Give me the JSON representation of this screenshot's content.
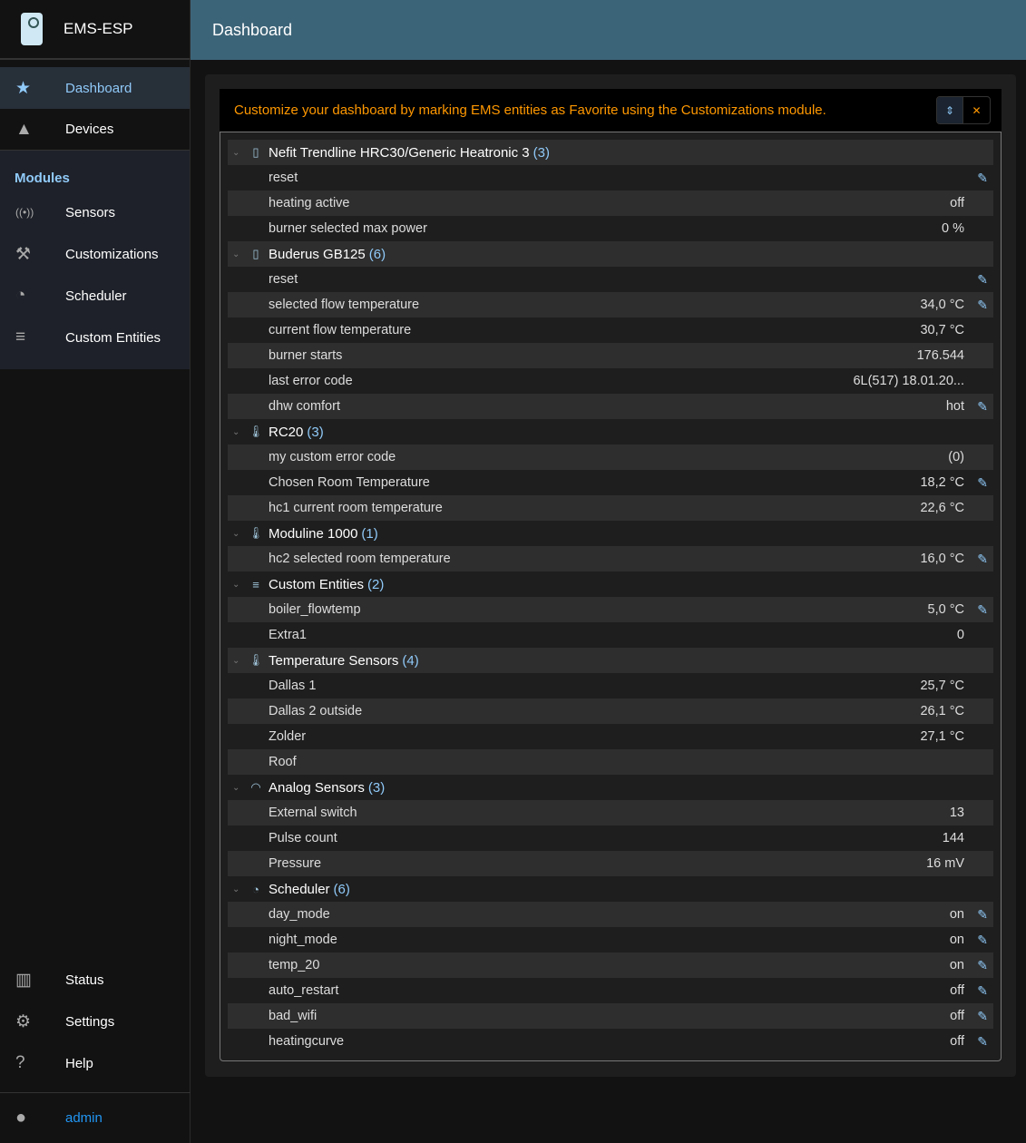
{
  "app": {
    "title": "EMS-ESP"
  },
  "header": {
    "title": "Dashboard"
  },
  "sidebar": {
    "top": [
      {
        "label": "Dashboard",
        "icon": "star-icon",
        "active": true
      },
      {
        "label": "Devices",
        "icon": "category-icon"
      }
    ],
    "modules_title": "Modules",
    "modules": [
      {
        "label": "Sensors",
        "icon": "sensors-icon"
      },
      {
        "label": "Customizations",
        "icon": "tools-icon"
      },
      {
        "label": "Scheduler",
        "icon": "more-time-icon"
      },
      {
        "label": "Custom Entities",
        "icon": "playlist-add-icon"
      }
    ],
    "bottom": [
      {
        "label": "Status",
        "icon": "chart-icon"
      },
      {
        "label": "Settings",
        "icon": "gear-icon"
      },
      {
        "label": "Help",
        "icon": "help-icon"
      }
    ],
    "user": "admin"
  },
  "alert": "Customize your dashboard by marking EMS entities as Favorite using the Customizations module.",
  "colors": {
    "accent": "#90caf9",
    "header": "#3c6478",
    "alert": "#ff9800",
    "user": "#2196f3"
  },
  "groups": [
    {
      "name": "Nefit Trendline HRC30/Generic Heatronic 3",
      "count": "(3)",
      "icon": "boiler-icon",
      "rows": [
        {
          "name": "reset",
          "value": "",
          "editable": true
        },
        {
          "name": "heating active",
          "value": "off",
          "editable": false
        },
        {
          "name": "burner selected max power",
          "value": "0 %",
          "editable": false
        }
      ]
    },
    {
      "name": "Buderus GB125",
      "count": "(6)",
      "icon": "boiler-icon",
      "rows": [
        {
          "name": "reset",
          "value": "",
          "editable": true
        },
        {
          "name": "selected flow temperature",
          "value": "34,0 °C",
          "editable": true
        },
        {
          "name": "current flow temperature",
          "value": "30,7 °C",
          "editable": false
        },
        {
          "name": "burner starts",
          "value": "176.544",
          "editable": false
        },
        {
          "name": "last error code",
          "value": "6L(517) 18.01.20...",
          "editable": false
        },
        {
          "name": "dhw comfort",
          "value": "hot",
          "editable": true
        }
      ]
    },
    {
      "name": "RC20",
      "count": "(3)",
      "icon": "thermostat-icon",
      "rows": [
        {
          "name": "my custom error code",
          "value": "(0)",
          "editable": false
        },
        {
          "name": "Chosen Room Temperature",
          "value": "18,2 °C",
          "editable": true
        },
        {
          "name": "hc1 current room temperature",
          "value": "22,6 °C",
          "editable": false
        }
      ]
    },
    {
      "name": "Moduline 1000",
      "count": "(1)",
      "icon": "thermostat-icon",
      "rows": [
        {
          "name": "hc2 selected room temperature",
          "value": "16,0 °C",
          "editable": true
        }
      ]
    },
    {
      "name": "Custom Entities",
      "count": "(2)",
      "icon": "playlist-add-icon",
      "rows": [
        {
          "name": "boiler_flowtemp",
          "value": "5,0 °C",
          "editable": true
        },
        {
          "name": "Extra1",
          "value": "0",
          "editable": false
        }
      ]
    },
    {
      "name": "Temperature Sensors",
      "count": "(4)",
      "icon": "thermometer-icon",
      "rows": [
        {
          "name": "Dallas 1",
          "value": "25,7 °C",
          "editable": false
        },
        {
          "name": "Dallas 2 outside",
          "value": "26,1 °C",
          "editable": false
        },
        {
          "name": "Zolder",
          "value": "27,1 °C",
          "editable": false
        },
        {
          "name": "Roof",
          "value": "",
          "editable": false
        }
      ]
    },
    {
      "name": "Analog Sensors",
      "count": "(3)",
      "icon": "gauge-icon",
      "rows": [
        {
          "name": "External switch",
          "value": "13",
          "editable": false
        },
        {
          "name": "Pulse count",
          "value": "144",
          "editable": false
        },
        {
          "name": "Pressure",
          "value": "16 mV",
          "editable": false
        }
      ]
    },
    {
      "name": "Scheduler",
      "count": "(6)",
      "icon": "more-time-icon",
      "rows": [
        {
          "name": "day_mode",
          "value": "on",
          "editable": true
        },
        {
          "name": "night_mode",
          "value": "on",
          "editable": true
        },
        {
          "name": "temp_20",
          "value": "on",
          "editable": true
        },
        {
          "name": "auto_restart",
          "value": "off",
          "editable": true
        },
        {
          "name": "bad_wifi",
          "value": "off",
          "editable": true
        },
        {
          "name": "heatingcurve",
          "value": "off",
          "editable": true
        }
      ]
    }
  ]
}
